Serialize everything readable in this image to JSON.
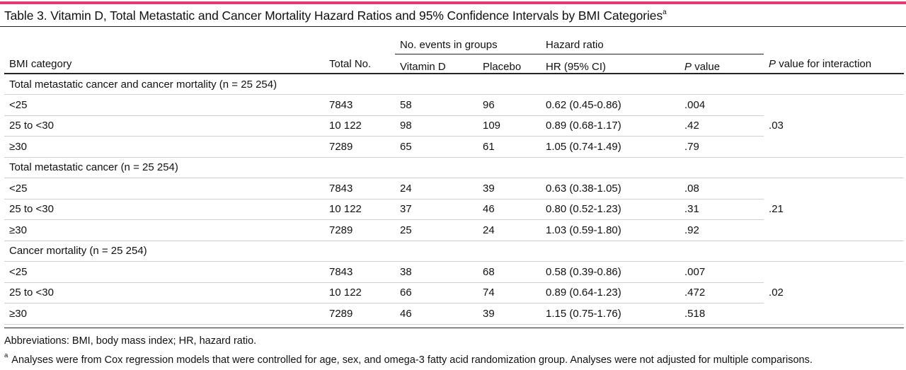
{
  "title": {
    "text": "Table 3. Vitamin D, Total Metastatic and Cancer Mortality Hazard Ratios and 95% Confidence Intervals by BMI Categories",
    "superscript": "a"
  },
  "accent_color": "#e23a72",
  "header": {
    "group_events": "No. events in groups",
    "group_hr": "Hazard ratio",
    "bmi_category": "BMI category",
    "total_no": "Total No.",
    "vitamin_d": "Vitamin D",
    "placebo": "Placebo",
    "hr_ci": "HR (95% CI)",
    "p_letter": "P",
    "p_value_rest": " value",
    "p_interaction_rest": " value for interaction"
  },
  "sections": [
    {
      "label": "Total metastatic cancer and cancer mortality (n = 25 254)",
      "p_interaction": ".03",
      "rows": [
        {
          "bmi": "<25",
          "total": "7843",
          "vitd": "58",
          "placebo": "96",
          "hr": "0.62 (0.45-0.86)",
          "p": ".004"
        },
        {
          "bmi": "25 to <30",
          "total": "10 122",
          "vitd": "98",
          "placebo": "109",
          "hr": "0.89 (0.68-1.17)",
          "p": ".42"
        },
        {
          "bmi": "≥30",
          "total": "7289",
          "vitd": "65",
          "placebo": "61",
          "hr": "1.05 (0.74-1.49)",
          "p": ".79"
        }
      ]
    },
    {
      "label": "Total metastatic cancer (n = 25 254)",
      "p_interaction": ".21",
      "rows": [
        {
          "bmi": "<25",
          "total": "7843",
          "vitd": "24",
          "placebo": "39",
          "hr": "0.63 (0.38-1.05)",
          "p": ".08"
        },
        {
          "bmi": "25 to <30",
          "total": "10 122",
          "vitd": "37",
          "placebo": "46",
          "hr": "0.80 (0.52-1.23)",
          "p": ".31"
        },
        {
          "bmi": "≥30",
          "total": "7289",
          "vitd": "25",
          "placebo": "24",
          "hr": "1.03 (0.59-1.80)",
          "p": ".92"
        }
      ]
    },
    {
      "label": "Cancer mortality (n = 25 254)",
      "p_interaction": ".02",
      "rows": [
        {
          "bmi": "<25",
          "total": "7843",
          "vitd": "38",
          "placebo": "68",
          "hr": "0.58 (0.39-0.86)",
          "p": ".007"
        },
        {
          "bmi": "25 to <30",
          "total": "10 122",
          "vitd": "66",
          "placebo": "74",
          "hr": "0.89 (0.64-1.23)",
          "p": ".472"
        },
        {
          "bmi": "≥30",
          "total": "7289",
          "vitd": "46",
          "placebo": "39",
          "hr": "1.15 (0.75-1.76)",
          "p": ".518"
        }
      ]
    }
  ],
  "footnotes": {
    "abbreviations": "Abbreviations: BMI, body mass index; HR, hazard ratio.",
    "a_marker": "a",
    "a_text": "Analyses were from Cox regression models that were controlled for age, sex, and omega-3 fatty acid randomization group. Analyses were not adjusted for multiple comparisons."
  }
}
